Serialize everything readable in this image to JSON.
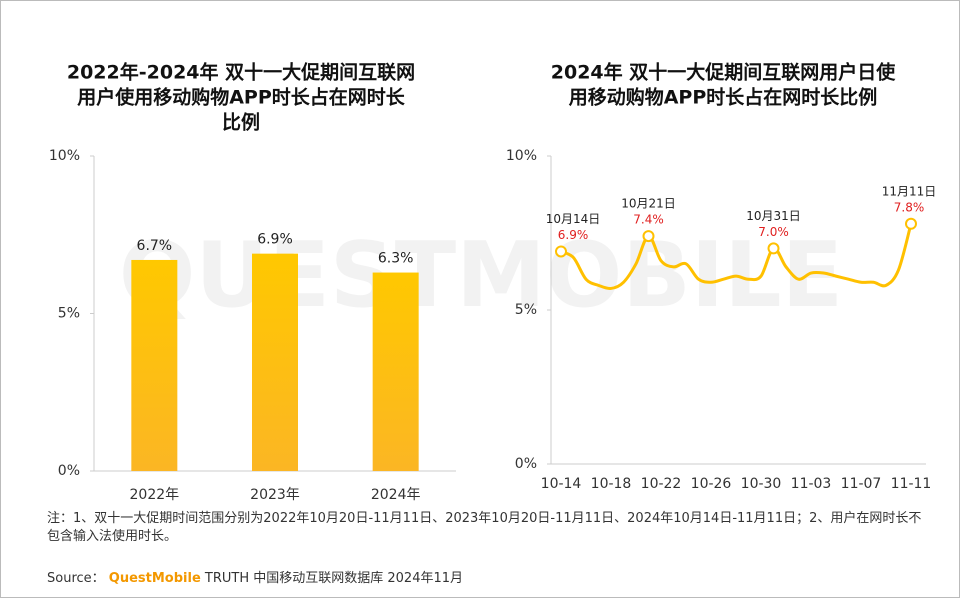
{
  "chart_data": [
    {
      "type": "bar",
      "title": [
        "2022年-2024年 双十一大促期间互联网",
        "用户使用移动购物APP时长占在网时长",
        "比例"
      ],
      "categories": [
        "2022年",
        "2023年",
        "2024年"
      ],
      "values": [
        6.7,
        6.9,
        6.3
      ],
      "value_labels": [
        "6.7%",
        "6.9%",
        "6.3%"
      ],
      "color": "#ffc20e",
      "ylim": [
        0,
        10
      ],
      "yticks": [
        {
          "value": 0,
          "label": "0%"
        },
        {
          "value": 5,
          "label": "5%"
        },
        {
          "value": 10,
          "label": "10%"
        }
      ]
    },
    {
      "type": "line",
      "title": [
        "2024年 双十一大促期间互联网用户日使",
        "用移动购物APP时长占在网时长比例"
      ],
      "categories": [
        "10-14",
        null,
        null,
        null,
        "10-18",
        null,
        null,
        null,
        "10-22",
        null,
        null,
        null,
        "10-26",
        null,
        null,
        null,
        "10-30",
        null,
        null,
        null,
        "11-03",
        null,
        null,
        null,
        "11-07",
        null,
        null,
        null,
        "11-11"
      ],
      "values": [
        6.9,
        6.7,
        6.0,
        5.8,
        5.7,
        5.9,
        6.5,
        7.4,
        6.6,
        6.4,
        6.5,
        6.0,
        5.9,
        6.0,
        6.1,
        6.0,
        6.1,
        7.0,
        6.4,
        6.0,
        6.2,
        6.2,
        6.1,
        6.0,
        5.9,
        5.9,
        5.8,
        6.3,
        7.8
      ],
      "date_labels": [
        "10月14日",
        null,
        null,
        null,
        null,
        null,
        null,
        "10月21日",
        null,
        null,
        null,
        null,
        null,
        null,
        null,
        null,
        null,
        "10月31日",
        null,
        null,
        null,
        null,
        null,
        null,
        null,
        null,
        null,
        null,
        "11月11日"
      ],
      "value_labels": [
        "6.9%",
        null,
        null,
        null,
        null,
        null,
        null,
        "7.4%",
        null,
        null,
        null,
        null,
        null,
        null,
        null,
        null,
        null,
        "7.0%",
        null,
        null,
        null,
        null,
        null,
        null,
        null,
        null,
        null,
        null,
        "7.8%"
      ],
      "color": "#ffc000",
      "ylim": [
        0,
        10
      ],
      "yticks": [
        {
          "value": 0,
          "label": "0%"
        },
        {
          "value": 5,
          "label": "5%"
        },
        {
          "value": 10,
          "label": "10%"
        }
      ]
    }
  ],
  "watermark": "QUESTMOBILE",
  "note": "注：1、双十一大促期时间范围分别为2022年10月20日-11月11日、2023年10月20日-11月11日、2024年10月14日-11月11日；2、用户在网时长不包含输入法使用时长。",
  "source": {
    "label": "Source：",
    "brand": "QuestMobile",
    "text": "TRUTH 中国移动互联网数据库 2024年11月"
  }
}
